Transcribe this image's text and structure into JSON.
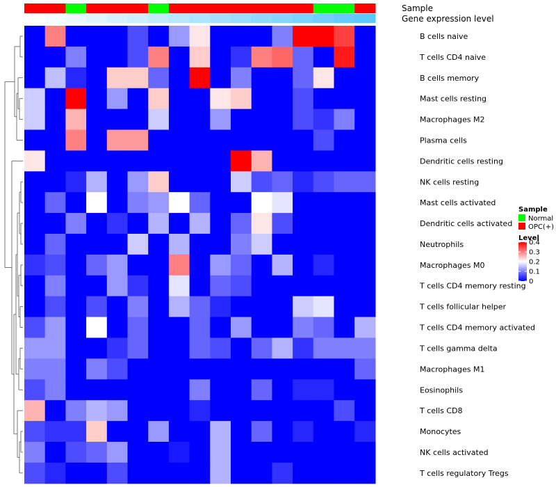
{
  "chart_data": {
    "type": "heatmap",
    "annotation_labels": {
      "sample": "Sample",
      "level": "Gene expression level"
    },
    "sample_groups": [
      "OPC(+)",
      "OPC(+)",
      "Normal",
      "OPC(+)",
      "OPC(+)",
      "OPC(+)",
      "Normal",
      "OPC(+)",
      "OPC(+)",
      "OPC(+)",
      "OPC(+)",
      "OPC(+)",
      "OPC(+)",
      "OPC(+)",
      "Normal",
      "Normal",
      "OPC(+)"
    ],
    "sample_levels": [
      0.02,
      0.04,
      0.06,
      0.08,
      0.1,
      0.12,
      0.14,
      0.16,
      0.18,
      0.2,
      0.22,
      0.24,
      0.26,
      0.28,
      0.3,
      0.32,
      0.34
    ],
    "rows": [
      "B cells naive",
      "T cells CD4 naive",
      "B cells memory",
      "Mast cells resting",
      "Macrophages M2",
      "Plasma cells",
      "Dendritic cells resting",
      "NK cells resting",
      "Mast cells activated",
      "Dendritic cells activated",
      "Neutrophils",
      "Macrophages M0",
      "T cells CD4 memory resting",
      "T cells follicular helper",
      "T cells CD4 memory activated",
      "T cells gamma delta",
      "Macrophages M1",
      "Eosinophils",
      "T cells CD8",
      "Monocytes",
      "NK cells activated",
      "T cells regulatory  Tregs"
    ],
    "values": [
      [
        0,
        0.3,
        0,
        0,
        0,
        0.06,
        0,
        0.12,
        0.22,
        0,
        0,
        0,
        0.1,
        0.4,
        0.4,
        0.35,
        0
      ],
      [
        0,
        0,
        0.1,
        0,
        0,
        0.06,
        0.3,
        0,
        0.24,
        0,
        0.04,
        0.3,
        0.32,
        0.08,
        0,
        0.38,
        0
      ],
      [
        0,
        0.15,
        0.03,
        0,
        0.24,
        0.24,
        0.08,
        0,
        0.4,
        0,
        0.1,
        0,
        0,
        0.08,
        0.22,
        0,
        0
      ],
      [
        0.16,
        0,
        0.4,
        0,
        0.12,
        0,
        0.24,
        0,
        0,
        0.22,
        0.24,
        0,
        0,
        0.06,
        0,
        0,
        0
      ],
      [
        0.16,
        0,
        0.26,
        0,
        0,
        0,
        0.16,
        0,
        0,
        0.12,
        0,
        0,
        0,
        0.06,
        0.04,
        0.1,
        0
      ],
      [
        0,
        0,
        0.3,
        0,
        0.28,
        0.28,
        0,
        0,
        0,
        0,
        0,
        0,
        0,
        0,
        0.06,
        0,
        0
      ],
      [
        0.22,
        0,
        0,
        0,
        0,
        0,
        0,
        0,
        0,
        0,
        0.4,
        0.26,
        0,
        0,
        0,
        0,
        0
      ],
      [
        0,
        0,
        0.03,
        0.14,
        0,
        0.12,
        0.24,
        0,
        0,
        0,
        0.16,
        0.06,
        0.08,
        0.03,
        0.06,
        0.08,
        0.08
      ],
      [
        0,
        0.08,
        0,
        0.2,
        0,
        0.1,
        0.12,
        0.2,
        0.08,
        0,
        0,
        0.2,
        0.18,
        0,
        0,
        0,
        0
      ],
      [
        0,
        0,
        0.1,
        0,
        0.04,
        0,
        0.14,
        0,
        0.14,
        0,
        0.08,
        0.22,
        0.06,
        0,
        0,
        0,
        0
      ],
      [
        0,
        0.08,
        0,
        0,
        0,
        0.16,
        0,
        0.14,
        0,
        0,
        0.1,
        0.16,
        0,
        0,
        0,
        0,
        0
      ],
      [
        0.04,
        0.06,
        0,
        0.08,
        0.12,
        0,
        0,
        0.3,
        0,
        0.12,
        0.08,
        0,
        0.14,
        0,
        0.03,
        0,
        0
      ],
      [
        0,
        0.1,
        0,
        0,
        0.12,
        0.04,
        0,
        0.18,
        0,
        0.08,
        0.06,
        0,
        0,
        0,
        0,
        0,
        0
      ],
      [
        0,
        0.06,
        0,
        0.06,
        0,
        0.1,
        0,
        0.14,
        0.08,
        0.03,
        0,
        0,
        0,
        0.16,
        0.18,
        0,
        0
      ],
      [
        0.06,
        0.12,
        0,
        0.2,
        0,
        0.08,
        0,
        0,
        0.08,
        0,
        0.12,
        0,
        0,
        0.1,
        0.08,
        0,
        0.14
      ],
      [
        0.12,
        0.12,
        0,
        0,
        0.04,
        0.08,
        0,
        0,
        0.08,
        0.06,
        0,
        0.08,
        0.14,
        0.04,
        0.1,
        0.1,
        0.1
      ],
      [
        0.1,
        0.1,
        0,
        0.1,
        0.06,
        0,
        0,
        0,
        0,
        0,
        0,
        0,
        0,
        0,
        0,
        0,
        0.08
      ],
      [
        0.06,
        0.1,
        0,
        0,
        0,
        0,
        0,
        0,
        0.1,
        0,
        0,
        0.08,
        0,
        0.03,
        0.03,
        0,
        0
      ],
      [
        0.26,
        0,
        0.1,
        0.14,
        0.12,
        0,
        0,
        0,
        0.03,
        0,
        0,
        0,
        0,
        0,
        0,
        0.06,
        0
      ],
      [
        0.06,
        0.04,
        0.04,
        0.24,
        0,
        0,
        0.12,
        0,
        0,
        0.14,
        0,
        0.08,
        0,
        0.03,
        0,
        0,
        0.03
      ],
      [
        0.1,
        0,
        0.06,
        0.08,
        0.12,
        0,
        0,
        0.02,
        0,
        0.14,
        0,
        0,
        0,
        0,
        0,
        0,
        0
      ],
      [
        0.06,
        0.03,
        0,
        0,
        0.06,
        0,
        0,
        0,
        0,
        0.14,
        0,
        0,
        0.04,
        0,
        0,
        0,
        0
      ]
    ],
    "color_scale": {
      "min": 0,
      "max": 0.4,
      "low": "#0000ff",
      "mid": "#ffffff",
      "high": "#ff0000",
      "mid_value": 0.2
    },
    "legend": {
      "sample_title": "Sample",
      "sample_items": [
        {
          "label": "Normal",
          "color": "#00ff00"
        },
        {
          "label": "OPC(+)",
          "color": "#ff0000"
        }
      ],
      "level_title": "Level",
      "level_ticks": [
        "0.4",
        "0.3",
        "0.2",
        "0.1",
        "0"
      ],
      "level_tick_values": [
        0.4,
        0.3,
        0.2,
        0.1,
        0
      ]
    },
    "level_annotation_colors": {
      "low": "#ffffff",
      "high": "#5bc8ff"
    }
  }
}
